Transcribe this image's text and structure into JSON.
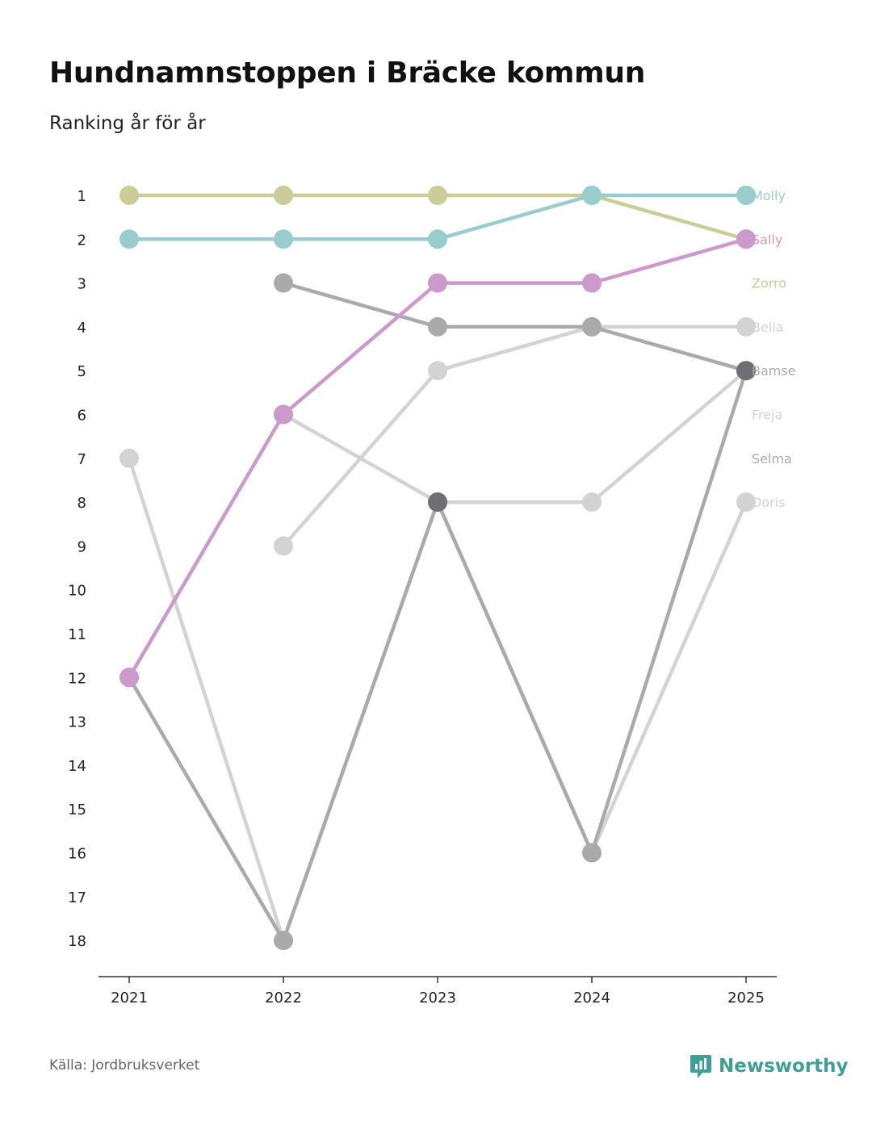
{
  "title": "Hundnamnstoppen i Bräcke kommun",
  "subtitle": "Ranking år för år",
  "source": "Källa: Jordbruksverket",
  "brand": "Newsworthy",
  "brand_color": "#3f9f95",
  "chart_data": {
    "type": "line",
    "x": [
      "2021",
      "2022",
      "2023",
      "2024",
      "2025"
    ],
    "y_ticks": [
      "1",
      "2",
      "3",
      "4",
      "5",
      "6",
      "7",
      "8",
      "9",
      "10",
      "11",
      "12",
      "13",
      "14",
      "15",
      "16",
      "17",
      "18"
    ],
    "ylim": [
      1,
      18
    ],
    "y_inverted": true,
    "series": [
      {
        "name": "Zorro",
        "color": "#cccc99",
        "values": [
          1,
          1,
          1,
          1,
          2
        ]
      },
      {
        "name": "Doris",
        "color": "#d3d3d3",
        "values": [
          7,
          18,
          8,
          8,
          5
        ]
      },
      {
        "name": "Freja",
        "color": "#d3d3d3",
        "values": [
          null,
          9,
          5,
          4,
          4
        ]
      },
      {
        "name": "Selma",
        "color": "#d3d3d3",
        "values": [
          null,
          6,
          8,
          16,
          8
        ]
      },
      {
        "name": "Bella",
        "color": "#aaaaaa",
        "values": [
          null,
          3,
          4,
          4,
          5
        ]
      },
      {
        "name": "Bamse",
        "color": "#aaaaaa",
        "values": [
          12,
          18,
          8,
          16,
          5
        ]
      },
      {
        "name": "Sally",
        "color": "#cc99cc",
        "values": [
          12,
          6,
          3,
          3,
          2
        ]
      },
      {
        "name": "Molly",
        "color": "#99cccc",
        "values": [
          2,
          2,
          2,
          1,
          1
        ]
      }
    ],
    "highlight_markers": [
      {
        "year": "2023",
        "rank": 8,
        "color": "#6e6e73"
      },
      {
        "year": "2025",
        "rank": 5,
        "color": "#6e6e73"
      }
    ],
    "end_labels": [
      {
        "name": "Molly",
        "rank": 1,
        "color": "#99cccc"
      },
      {
        "name": "Sally",
        "rank": 2,
        "color": "#cc99cc"
      },
      {
        "name": "Zorro",
        "rank": 3,
        "color": "#cccc99"
      },
      {
        "name": "Bella",
        "rank": 4,
        "color": "#d3d3d3"
      },
      {
        "name": "Bamse",
        "rank": 5,
        "color": "#aaaaaa"
      },
      {
        "name": "Freja",
        "rank": 6,
        "color": "#d3d3d3"
      },
      {
        "name": "Selma",
        "rank": 7,
        "color": "#aaaaaa"
      },
      {
        "name": "Doris",
        "rank": 8,
        "color": "#d3d3d3"
      }
    ]
  }
}
